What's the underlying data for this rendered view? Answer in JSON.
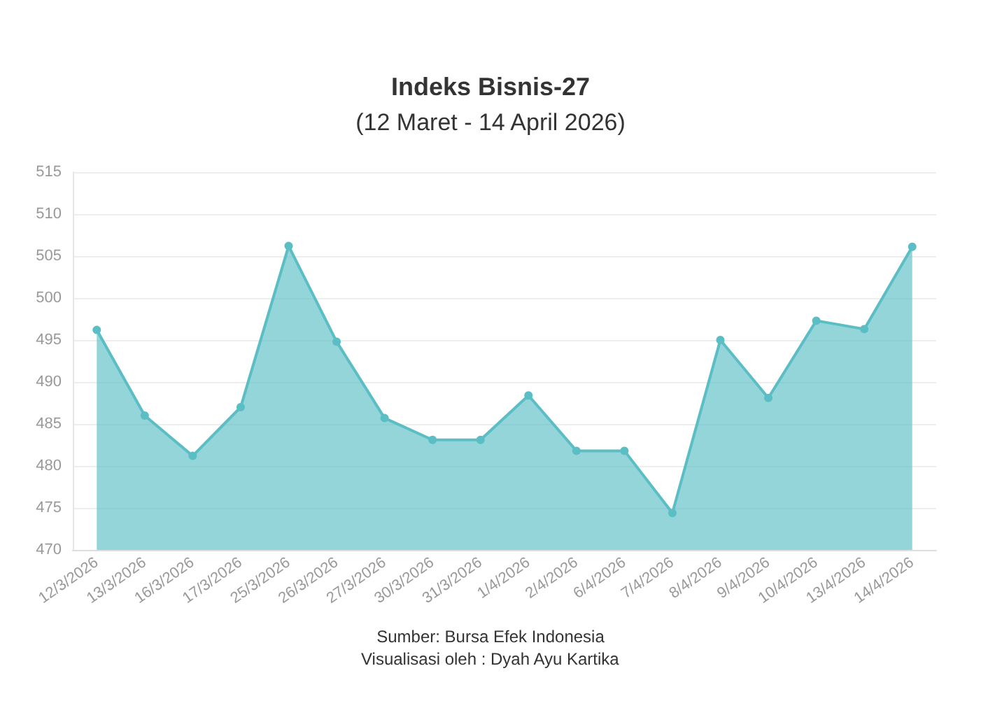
{
  "chart_data": {
    "type": "area",
    "title": "Indeks Bisnis-27",
    "subtitle": "(12 Maret - 14 April 2026)",
    "categories": [
      "12/3/2026",
      "13/3/2026",
      "16/3/2026",
      "17/3/2026",
      "25/3/2026",
      "26/3/2026",
      "27/3/2026",
      "30/3/2026",
      "31/3/2026",
      "1/4/2026",
      "2/4/2026",
      "6/4/2026",
      "7/4/2026",
      "8/4/2026",
      "9/4/2026",
      "10/4/2026",
      "13/4/2026",
      "14/4/2026"
    ],
    "series": [
      {
        "color": "#5bbec4",
        "values": [
          496.2,
          486,
          481.2,
          487,
          506.2,
          494.8,
          485.7,
          483.1,
          483.1,
          488.4,
          481.8,
          481.8,
          474.4,
          495,
          488.1,
          497.3,
          496.3,
          506.1
        ]
      }
    ],
    "ylim": [
      470,
      515
    ],
    "yticks": [
      470,
      475,
      480,
      485,
      490,
      495,
      500,
      505,
      510,
      515
    ],
    "grid": "y",
    "marker": "circle",
    "annotations": [
      "Sumber: Bursa Efek Indonesia",
      "Visualisasi oleh : Dyah Ayu Kartika"
    ]
  }
}
